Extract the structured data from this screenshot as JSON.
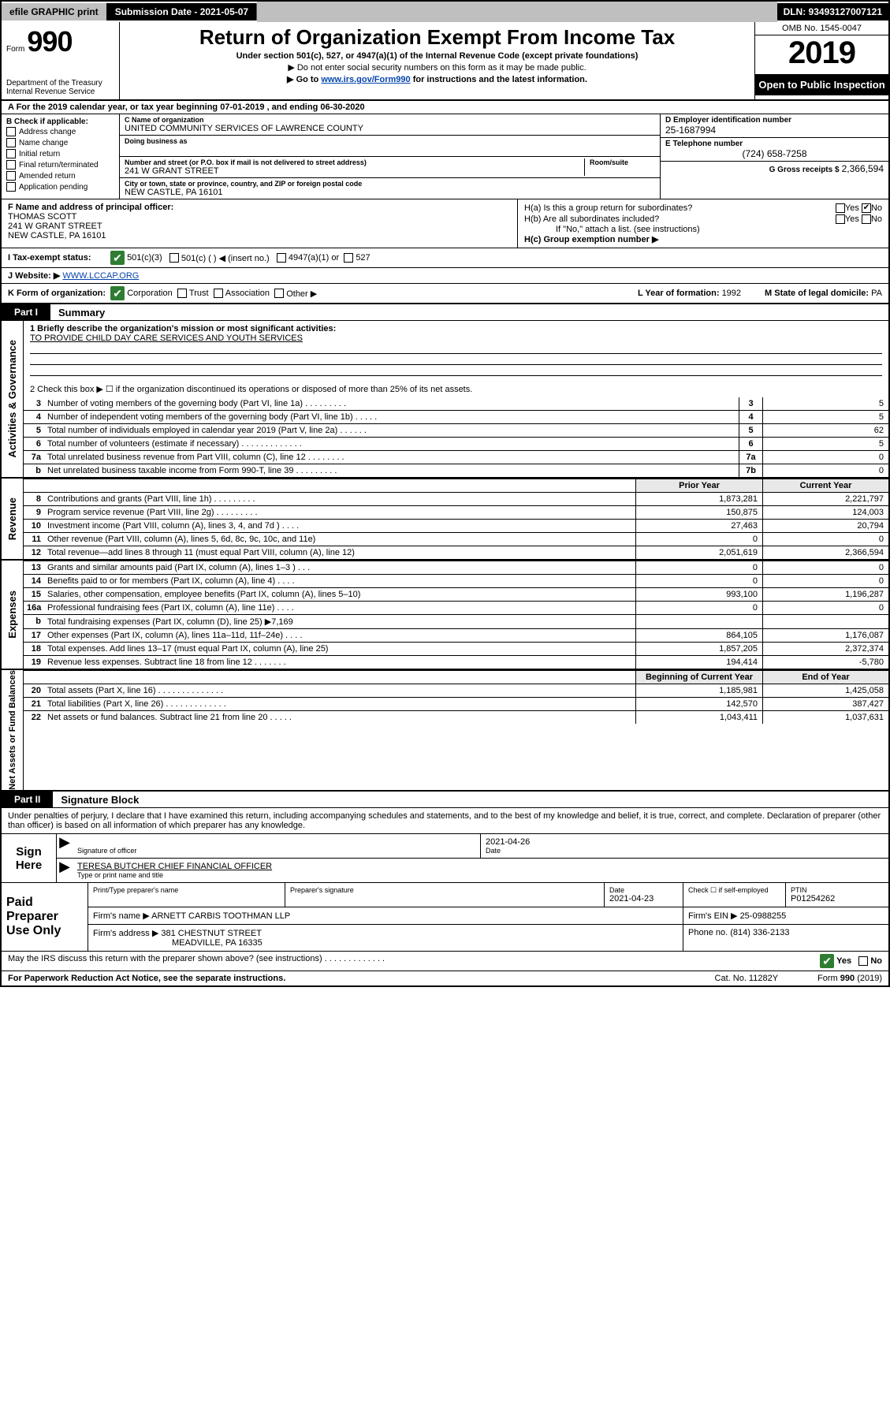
{
  "topbar": {
    "efile": "efile GRAPHIC print",
    "sub_label": "Submission Date - 2021-05-07",
    "dln": "DLN: 93493127007121"
  },
  "hdr": {
    "form_word": "Form",
    "form_num": "990",
    "dept": "Department of the Treasury\nInternal Revenue Service",
    "title": "Return of Organization Exempt From Income Tax",
    "sub": "Under section 501(c), 527, or 4947(a)(1) of the Internal Revenue Code (except private foundations)",
    "note1": "▶ Do not enter social security numbers on this form as it may be made public.",
    "note2_pre": "▶ Go to ",
    "note2_link": "www.irs.gov/Form990",
    "note2_post": " for instructions and the latest information.",
    "omb": "OMB No. 1545-0047",
    "year": "2019",
    "inspect": "Open to Public Inspection"
  },
  "sec_a": "A For the 2019 calendar year, or tax year beginning 07-01-2019    , and ending 06-30-2020",
  "boxB": {
    "title": "B Check if applicable:",
    "items": [
      "Address change",
      "Name change",
      "Initial return",
      "Final return/terminated",
      "Amended return",
      "Application pending"
    ]
  },
  "boxC": {
    "name_lbl": "C Name of organization",
    "name": "UNITED COMMUNITY SERVICES OF LAWRENCE COUNTY",
    "dba_lbl": "Doing business as",
    "street_lbl": "Number and street (or P.O. box if mail is not delivered to street address)",
    "room_lbl": "Room/suite",
    "street": "241 W GRANT STREET",
    "city_lbl": "City or town, state or province, country, and ZIP or foreign postal code",
    "city": "NEW CASTLE, PA  16101"
  },
  "boxD": {
    "lbl": "D Employer identification number",
    "val": "25-1687994"
  },
  "boxE": {
    "lbl": "E Telephone number",
    "val": "(724) 658-7258"
  },
  "boxG": {
    "lbl": "G Gross receipts $",
    "val": "2,366,594"
  },
  "boxF": {
    "lbl": "F Name and address of principal officer:",
    "name": "THOMAS SCOTT",
    "addr1": "241 W GRANT STREET",
    "addr2": "NEW CASTLE, PA  16101"
  },
  "boxH": {
    "ha": "H(a)  Is this a group return for subordinates?",
    "hb": "H(b)  Are all subordinates included?",
    "hb_note": "If \"No,\" attach a list. (see instructions)",
    "hc": "H(c)  Group exemption number ▶",
    "yes": "Yes",
    "no": "No"
  },
  "boxI": {
    "lbl": "I   Tax-exempt status:",
    "c3": "501(c)(3)",
    "c": "501(c) (  ) ◀ (insert no.)",
    "a1": "4947(a)(1) or",
    "s527": "527"
  },
  "boxJ": {
    "lbl": "J   Website: ▶",
    "val": "WWW.LCCAP.ORG"
  },
  "boxK": {
    "lbl": "K Form of organization:",
    "corp": "Corporation",
    "trust": "Trust",
    "assoc": "Association",
    "other": "Other ▶",
    "l_lbl": "L Year of formation:",
    "l_val": "1992",
    "m_lbl": "M State of legal domicile:",
    "m_val": "PA"
  },
  "part1": {
    "tag": "Part I",
    "title": "Summary",
    "side_gov": "Activities & Governance",
    "side_rev": "Revenue",
    "side_exp": "Expenses",
    "side_net": "Net Assets or Fund Balances",
    "q1_lbl": "1   Briefly describe the organization's mission or most significant activities:",
    "q1_val": "TO PROVIDE CHILD DAY CARE SERVICES AND YOUTH SERVICES",
    "q2": "2    Check this box ▶ ☐  if the organization discontinued its operations or disposed of more than 25% of its net assets.",
    "rows_gov": [
      {
        "n": "3",
        "d": "Number of voting members of the governing body (Part VI, line 1a)   .    .    .    .    .    .    .    .    .",
        "b": "3",
        "v": "5"
      },
      {
        "n": "4",
        "d": "Number of independent voting members of the governing body (Part VI, line 1b)   .    .    .    .    .",
        "b": "4",
        "v": "5"
      },
      {
        "n": "5",
        "d": "Total number of individuals employed in calendar year 2019 (Part V, line 2a)   .    .    .    .    .    .",
        "b": "5",
        "v": "62"
      },
      {
        "n": "6",
        "d": "Total number of volunteers (estimate if necessary)   .    .    .    .    .    .    .    .    .    .    .    .    .",
        "b": "6",
        "v": "5"
      },
      {
        "n": "7a",
        "d": "Total unrelated business revenue from Part VIII, column (C), line 12   .    .    .    .    .    .    .    .",
        "b": "7a",
        "v": "0"
      },
      {
        "n": "  b",
        "d": "Net unrelated business taxable income from Form 990-T, line 39   .    .    .    .    .    .    .    .    .",
        "b": "7b",
        "v": "0"
      }
    ],
    "hdr_prior": "Prior Year",
    "hdr_curr": "Current Year",
    "rows_rev": [
      {
        "n": "8",
        "d": "Contributions and grants (Part VIII, line 1h)   .    .    .    .    .    .    .    .    .",
        "p": "1,873,281",
        "c": "2,221,797"
      },
      {
        "n": "9",
        "d": "Program service revenue (Part VIII, line 2g)   .    .    .    .    .    .    .    .    .",
        "p": "150,875",
        "c": "124,003"
      },
      {
        "n": "10",
        "d": "Investment income (Part VIII, column (A), lines 3, 4, and 7d )   .    .    .    .",
        "p": "27,463",
        "c": "20,794"
      },
      {
        "n": "11",
        "d": "Other revenue (Part VIII, column (A), lines 5, 6d, 8c, 9c, 10c, and 11e)",
        "p": "0",
        "c": "0"
      },
      {
        "n": "12",
        "d": "Total revenue—add lines 8 through 11 (must equal Part VIII, column (A), line 12)",
        "p": "2,051,619",
        "c": "2,366,594"
      }
    ],
    "rows_exp": [
      {
        "n": "13",
        "d": "Grants and similar amounts paid (Part IX, column (A), lines 1–3 )   .    .    .",
        "p": "0",
        "c": "0"
      },
      {
        "n": "14",
        "d": "Benefits paid to or for members (Part IX, column (A), line 4)   .    .    .    .",
        "p": "0",
        "c": "0"
      },
      {
        "n": "15",
        "d": "Salaries, other compensation, employee benefits (Part IX, column (A), lines 5–10)",
        "p": "993,100",
        "c": "1,196,287"
      },
      {
        "n": "16a",
        "d": "Professional fundraising fees (Part IX, column (A), line 11e)   .    .    .    .",
        "p": "0",
        "c": "0"
      },
      {
        "n": "  b",
        "d": "Total fundraising expenses (Part IX, column (D), line 25) ▶7,169",
        "p": "",
        "c": ""
      },
      {
        "n": "17",
        "d": "Other expenses (Part IX, column (A), lines 11a–11d, 11f–24e)   .    .    .    .",
        "p": "864,105",
        "c": "1,176,087"
      },
      {
        "n": "18",
        "d": "Total expenses. Add lines 13–17 (must equal Part IX, column (A), line 25)",
        "p": "1,857,205",
        "c": "2,372,374"
      },
      {
        "n": "19",
        "d": "Revenue less expenses. Subtract line 18 from line 12   .    .    .    .    .    .    .",
        "p": "194,414",
        "c": "-5,780"
      }
    ],
    "hdr_beg": "Beginning of Current Year",
    "hdr_end": "End of Year",
    "rows_net": [
      {
        "n": "20",
        "d": "Total assets (Part X, line 16)   .    .    .    .    .    .    .    .    .    .    .    .    .    .",
        "p": "1,185,981",
        "c": "1,425,058"
      },
      {
        "n": "21",
        "d": "Total liabilities (Part X, line 26)   .    .    .    .    .    .    .    .    .    .    .    .    .",
        "p": "142,570",
        "c": "387,427"
      },
      {
        "n": "22",
        "d": "Net assets or fund balances. Subtract line 21 from line 20   .    .    .    .    .",
        "p": "1,043,411",
        "c": "1,037,631"
      }
    ]
  },
  "part2": {
    "tag": "Part II",
    "title": "Signature Block",
    "perjury": "Under penalties of perjury, I declare that I have examined this return, including accompanying schedules and statements, and to the best of my knowledge and belief, it is true, correct, and complete. Declaration of preparer (other than officer) is based on all information of which preparer has any knowledge."
  },
  "sign": {
    "here": "Sign Here",
    "sig_lbl": "Signature of officer",
    "date_lbl": "Date",
    "date": "2021-04-26",
    "name": "TERESA BUTCHER  CHIEF FINANCIAL OFFICER",
    "name_lbl": "Type or print name and title"
  },
  "prep": {
    "here": "Paid Preparer Use Only",
    "col1": "Print/Type preparer's name",
    "col2": "Preparer's signature",
    "col3": "Date",
    "date": "2021-04-23",
    "col4a": "Check ☐ if self-employed",
    "col5": "PTIN",
    "ptin": "P01254262",
    "firm_lbl": "Firm's name    ▶",
    "firm": "ARNETT CARBIS TOOTHMAN LLP",
    "ein_lbl": "Firm's EIN ▶",
    "ein": "25-0988255",
    "addr_lbl": "Firm's address ▶",
    "addr1": "381 CHESTNUT STREET",
    "addr2": "MEADVILLE, PA  16335",
    "ph_lbl": "Phone no.",
    "ph": "(814) 336-2133"
  },
  "discuss": {
    "q": "May the IRS discuss this return with the preparer shown above? (see instructions)   .    .    .    .    .    .    .    .    .    .    .    .    .",
    "yes": "Yes",
    "no": "No"
  },
  "pra": {
    "left": "For Paperwork Reduction Act Notice, see the separate instructions.",
    "mid": "Cat. No. 11282Y",
    "right": "Form 990 (2019)"
  }
}
